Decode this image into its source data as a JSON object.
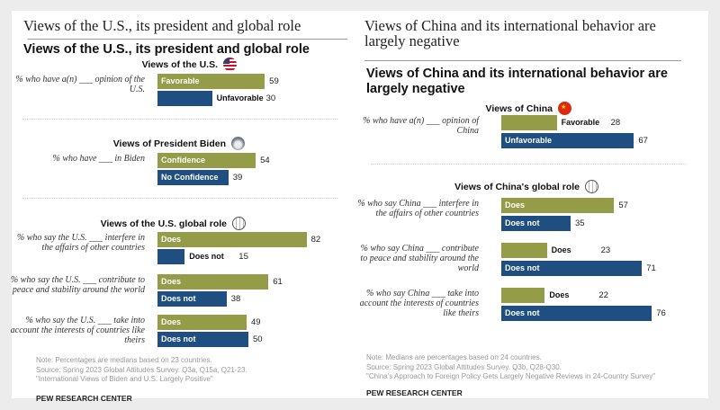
{
  "colors": {
    "positive": "#949c48",
    "negative": "#1f4e80"
  },
  "chart_data": [
    {
      "type": "bar",
      "header": "Views of the U.S., its president and global role",
      "title": "Views of the U.S., its president and global role",
      "sections": [
        {
          "title": "Views of the U.S.",
          "icon": "us-flag-icon",
          "groups": [
            {
              "label": "% who have a(n) ___ opinion of the U.S.",
              "bars": [
                {
                  "name": "Favorable",
                  "value": 59
                },
                {
                  "name": "Unfavorable",
                  "value": 30
                }
              ]
            }
          ]
        },
        {
          "title": "Views of President Biden",
          "icon": "white-house-icon",
          "groups": [
            {
              "label": "% who have ___ in Biden",
              "bars": [
                {
                  "name": "Confidence",
                  "value": 54
                },
                {
                  "name": "No Confidence",
                  "value": 39
                }
              ]
            }
          ]
        },
        {
          "title": "Views of the U.S. global role",
          "icon": "globe-icon",
          "groups": [
            {
              "label": "% who say the U.S. ___ interfere in the affairs of other countries",
              "bars": [
                {
                  "name": "Does",
                  "value": 82
                },
                {
                  "name": "Does not",
                  "value": 15
                }
              ]
            },
            {
              "label": "% who say the U.S. ___ contribute to peace and stability around the world",
              "bars": [
                {
                  "name": "Does",
                  "value": 61
                },
                {
                  "name": "Does not",
                  "value": 38
                }
              ]
            },
            {
              "label": "% who say the U.S. ___ take into account the interests of countries like theirs",
              "bars": [
                {
                  "name": "Does",
                  "value": 49
                },
                {
                  "name": "Does not",
                  "value": 50
                }
              ]
            }
          ]
        }
      ],
      "notes": [
        "Note: Percentages are medians based on 23 countries.",
        "Source: Spring 2023 Global Attitudes Survey. Q3a, Q15a, Q21-23.",
        "\"International Views of Biden and U.S. Largely Positive\""
      ],
      "source": "PEW RESEARCH CENTER"
    },
    {
      "type": "bar",
      "header": "Views of China and its international behavior are largely negative",
      "title": "Views of China and its international behavior are largely negative",
      "sections": [
        {
          "title": "Views of China",
          "icon": "china-flag-icon",
          "groups": [
            {
              "label": "% who have a(n) ___ opinion of China",
              "bars": [
                {
                  "name": "Favorable",
                  "value": 28
                },
                {
                  "name": "Unfavorable",
                  "value": 67
                }
              ]
            }
          ]
        },
        {
          "title": "Views of China's global role",
          "icon": "globe-icon",
          "groups": [
            {
              "label": "% who say China ___ interfere in the affairs of other countries",
              "bars": [
                {
                  "name": "Does",
                  "value": 57
                },
                {
                  "name": "Does not",
                  "value": 35
                }
              ]
            },
            {
              "label": "% who say China ___ contribute to peace and stability around the world",
              "bars": [
                {
                  "name": "Does",
                  "value": 23
                },
                {
                  "name": "Does not",
                  "value": 71
                }
              ]
            },
            {
              "label": "% who say China ___ take into account the interests of countries like theirs",
              "bars": [
                {
                  "name": "Does",
                  "value": 22
                },
                {
                  "name": "Does not",
                  "value": 76
                }
              ]
            }
          ]
        }
      ],
      "notes": [
        "Note: Medians are percentages based on 24 countries.",
        "Source: Spring 2023 Global Attitudes Survey. Q3b, Q28-Q30.",
        "\"China's Approach to Foreign Policy Gets Largely Negative Reviews in 24-Country Survey\""
      ],
      "source": "PEW RESEARCH CENTER"
    }
  ]
}
